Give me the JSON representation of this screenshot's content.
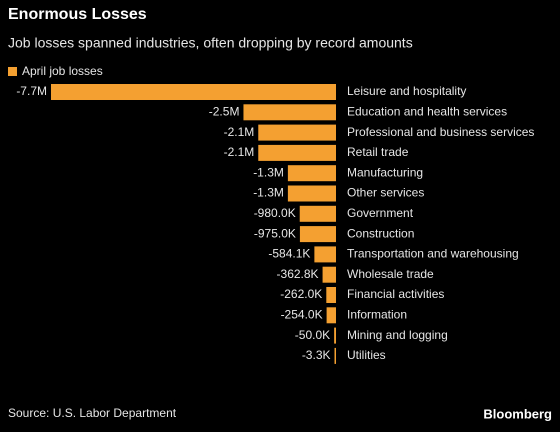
{
  "chart_data": {
    "type": "bar",
    "orientation": "horizontal",
    "title": "Enormous Losses",
    "subtitle": "Job losses spanned industries, often dropping by record amounts",
    "categories": [
      "Leisure and hospitality",
      "Education and health services",
      "Professional and business services",
      "Retail trade",
      "Manufacturing",
      "Other services",
      "Government",
      "Construction",
      "Transportation and warehousing",
      "Wholesale trade",
      "Financial activities",
      "Information",
      "Mining and logging",
      "Utilities"
    ],
    "series": [
      {
        "name": "April job losses",
        "color": "#f4a031",
        "values": [
          -7700000,
          -2500000,
          -2100000,
          -2100000,
          -1300000,
          -1300000,
          -980000,
          -975000,
          -584100,
          -362800,
          -262000,
          -254000,
          -50000,
          -3300
        ],
        "value_labels": [
          "-7.7M",
          "-2.5M",
          "-2.1M",
          "-2.1M",
          "-1.3M",
          "-1.3M",
          "-980.0K",
          "-975.0K",
          "-584.1K",
          "-362.8K",
          "-262.0K",
          "-254.0K",
          "-50.0K",
          "-3.3K"
        ]
      }
    ],
    "legend": "top-left",
    "source": "Source: U.S. Labor Department",
    "brand": "Bloomberg"
  }
}
